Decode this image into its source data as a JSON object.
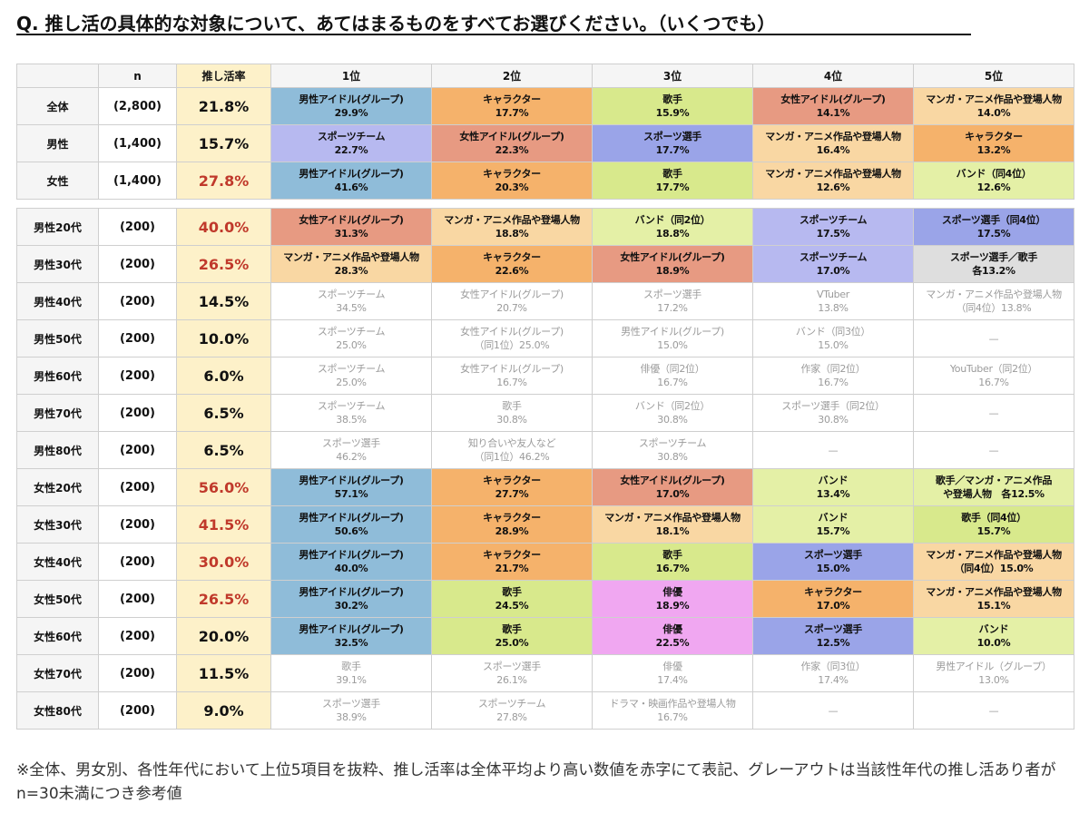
{
  "title": "Q. 推し活の具体的な対象について、あてはまるものをすべてお選びください。（いくつでも）",
  "header": {
    "blank": "",
    "n": "n",
    "rate": "推し活率",
    "ranks": [
      "1位",
      "2位",
      "3位",
      "4位",
      "5位"
    ]
  },
  "colors": {
    "blue": "#8fbcd9",
    "orange": "#f5b26b",
    "lime": "#d8e98c",
    "red": "#e79a82",
    "peach": "#f9d7a3",
    "purple": "#b7b9f0",
    "violet": "#9aa4e8",
    "pink": "#f0a7f1",
    "gray": "#dedede",
    "lgreen": "#e4f0a6",
    "highlight_text": "#c0392b",
    "gray_text": "#9b9b9b"
  },
  "group1": [
    {
      "label": "全体",
      "n": "(2,800)",
      "rate": "21.8%",
      "red": false,
      "cells": [
        {
          "l1": "男性アイドル(グループ)",
          "l2": "29.9%",
          "color": "blue",
          "gray": false
        },
        {
          "l1": "キャラクター",
          "l2": "17.7%",
          "color": "orange",
          "gray": false
        },
        {
          "l1": "歌手",
          "l2": "15.9%",
          "color": "lime",
          "gray": false
        },
        {
          "l1": "女性アイドル(グループ)",
          "l2": "14.1%",
          "color": "red",
          "gray": false
        },
        {
          "l1": "マンガ・アニメ作品や登場人物",
          "l2": "14.0%",
          "color": "peach",
          "gray": false
        }
      ]
    },
    {
      "label": "男性",
      "n": "(1,400)",
      "rate": "15.7%",
      "red": false,
      "cells": [
        {
          "l1": "スポーツチーム",
          "l2": "22.7%",
          "color": "purple",
          "gray": false
        },
        {
          "l1": "女性アイドル(グループ)",
          "l2": "22.3%",
          "color": "red",
          "gray": false
        },
        {
          "l1": "スポーツ選手",
          "l2": "17.7%",
          "color": "violet",
          "gray": false
        },
        {
          "l1": "マンガ・アニメ作品や登場人物",
          "l2": "16.4%",
          "color": "peach",
          "gray": false
        },
        {
          "l1": "キャラクター",
          "l2": "13.2%",
          "color": "orange",
          "gray": false
        }
      ]
    },
    {
      "label": "女性",
      "n": "(1,400)",
      "rate": "27.8%",
      "red": true,
      "cells": [
        {
          "l1": "男性アイドル(グループ)",
          "l2": "41.6%",
          "color": "blue",
          "gray": false
        },
        {
          "l1": "キャラクター",
          "l2": "20.3%",
          "color": "orange",
          "gray": false
        },
        {
          "l1": "歌手",
          "l2": "17.7%",
          "color": "lime",
          "gray": false
        },
        {
          "l1": "マンガ・アニメ作品や登場人物",
          "l2": "12.6%",
          "color": "peach",
          "gray": false
        },
        {
          "l1": "バンド（同4位）",
          "l2": "12.6%",
          "color": "lgreen",
          "gray": false
        }
      ]
    }
  ],
  "group2": [
    {
      "label": "男性20代",
      "n": "(200)",
      "rate": "40.0%",
      "red": true,
      "cells": [
        {
          "l1": "女性アイドル(グループ)",
          "l2": "31.3%",
          "color": "red",
          "gray": false
        },
        {
          "l1": "マンガ・アニメ作品や登場人物",
          "l2": "18.8%",
          "color": "peach",
          "gray": false
        },
        {
          "l1": "バンド（同2位）",
          "l2": "18.8%",
          "color": "lgreen",
          "gray": false
        },
        {
          "l1": "スポーツチーム",
          "l2": "17.5%",
          "color": "purple",
          "gray": false
        },
        {
          "l1": "スポーツ選手（同4位）",
          "l2": "17.5%",
          "color": "violet",
          "gray": false
        }
      ]
    },
    {
      "label": "男性30代",
      "n": "(200)",
      "rate": "26.5%",
      "red": true,
      "cells": [
        {
          "l1": "マンガ・アニメ作品や登場人物",
          "l2": "28.3%",
          "color": "peach",
          "gray": false
        },
        {
          "l1": "キャラクター",
          "l2": "22.6%",
          "color": "orange",
          "gray": false
        },
        {
          "l1": "女性アイドル(グループ)",
          "l2": "18.9%",
          "color": "red",
          "gray": false
        },
        {
          "l1": "スポーツチーム",
          "l2": "17.0%",
          "color": "purple",
          "gray": false
        },
        {
          "l1": "スポーツ選手／歌手",
          "l2": "各13.2%",
          "color": "gray",
          "gray": false
        }
      ]
    },
    {
      "label": "男性40代",
      "n": "(200)",
      "rate": "14.5%",
      "red": false,
      "cells": [
        {
          "l1": "スポーツチーム",
          "l2": "34.5%",
          "color": "none",
          "gray": true
        },
        {
          "l1": "女性アイドル(グループ)",
          "l2": "20.7%",
          "color": "none",
          "gray": true
        },
        {
          "l1": "スポーツ選手",
          "l2": "17.2%",
          "color": "none",
          "gray": true
        },
        {
          "l1": "VTuber",
          "l2": "13.8%",
          "color": "none",
          "gray": true
        },
        {
          "l1": "マンガ・アニメ作品や登場人物",
          "l2": "（同4位）13.8%",
          "color": "none",
          "gray": true
        }
      ]
    },
    {
      "label": "男性50代",
      "n": "(200)",
      "rate": "10.0%",
      "red": false,
      "cells": [
        {
          "l1": "スポーツチーム",
          "l2": "25.0%",
          "color": "none",
          "gray": true
        },
        {
          "l1": "女性アイドル(グループ)",
          "l2": "（同1位）25.0%",
          "color": "none",
          "gray": true
        },
        {
          "l1": "男性アイドル(グループ)",
          "l2": "15.0%",
          "color": "none",
          "gray": true
        },
        {
          "l1": "バンド（同3位）",
          "l2": "15.0%",
          "color": "none",
          "gray": true
        },
        {
          "l1": "—",
          "l2": "",
          "color": "none",
          "gray": true
        }
      ]
    },
    {
      "label": "男性60代",
      "n": "(200)",
      "rate": "6.0%",
      "red": false,
      "cells": [
        {
          "l1": "スポーツチーム",
          "l2": "25.0%",
          "color": "none",
          "gray": true
        },
        {
          "l1": "女性アイドル(グループ)",
          "l2": "16.7%",
          "color": "none",
          "gray": true
        },
        {
          "l1": "俳優（同2位）",
          "l2": "16.7%",
          "color": "none",
          "gray": true
        },
        {
          "l1": "作家（同2位）",
          "l2": "16.7%",
          "color": "none",
          "gray": true
        },
        {
          "l1": "YouTuber（同2位）",
          "l2": "16.7%",
          "color": "none",
          "gray": true
        }
      ]
    },
    {
      "label": "男性70代",
      "n": "(200)",
      "rate": "6.5%",
      "red": false,
      "cells": [
        {
          "l1": "スポーツチーム",
          "l2": "38.5%",
          "color": "none",
          "gray": true
        },
        {
          "l1": "歌手",
          "l2": "30.8%",
          "color": "none",
          "gray": true
        },
        {
          "l1": "バンド（同2位）",
          "l2": "30.8%",
          "color": "none",
          "gray": true
        },
        {
          "l1": "スポーツ選手（同2位）",
          "l2": "30.8%",
          "color": "none",
          "gray": true
        },
        {
          "l1": "—",
          "l2": "",
          "color": "none",
          "gray": true
        }
      ]
    },
    {
      "label": "男性80代",
      "n": "(200)",
      "rate": "6.5%",
      "red": false,
      "cells": [
        {
          "l1": "スポーツ選手",
          "l2": "46.2%",
          "color": "none",
          "gray": true
        },
        {
          "l1": "知り合いや友人など",
          "l2": "（同1位）46.2%",
          "color": "none",
          "gray": true
        },
        {
          "l1": "スポーツチーム",
          "l2": "30.8%",
          "color": "none",
          "gray": true
        },
        {
          "l1": "—",
          "l2": "",
          "color": "none",
          "gray": true
        },
        {
          "l1": "—",
          "l2": "",
          "color": "none",
          "gray": true
        }
      ]
    },
    {
      "label": "女性20代",
      "n": "(200)",
      "rate": "56.0%",
      "red": true,
      "cells": [
        {
          "l1": "男性アイドル(グループ)",
          "l2": "57.1%",
          "color": "blue",
          "gray": false
        },
        {
          "l1": "キャラクター",
          "l2": "27.7%",
          "color": "orange",
          "gray": false
        },
        {
          "l1": "女性アイドル(グループ)",
          "l2": "17.0%",
          "color": "red",
          "gray": false
        },
        {
          "l1": "バンド",
          "l2": "13.4%",
          "color": "lgreen",
          "gray": false
        },
        {
          "l1": "歌手／マンガ・アニメ作品",
          "l2": "や登場人物　各12.5%",
          "color": "lgreen",
          "gray": false
        }
      ]
    },
    {
      "label": "女性30代",
      "n": "(200)",
      "rate": "41.5%",
      "red": true,
      "cells": [
        {
          "l1": "男性アイドル(グループ)",
          "l2": "50.6%",
          "color": "blue",
          "gray": false
        },
        {
          "l1": "キャラクター",
          "l2": "28.9%",
          "color": "orange",
          "gray": false
        },
        {
          "l1": "マンガ・アニメ作品や登場人物",
          "l2": "18.1%",
          "color": "peach",
          "gray": false
        },
        {
          "l1": "バンド",
          "l2": "15.7%",
          "color": "lgreen",
          "gray": false
        },
        {
          "l1": "歌手（同4位）",
          "l2": "15.7%",
          "color": "lime",
          "gray": false
        }
      ]
    },
    {
      "label": "女性40代",
      "n": "(200)",
      "rate": "30.0%",
      "red": true,
      "cells": [
        {
          "l1": "男性アイドル(グループ)",
          "l2": "40.0%",
          "color": "blue",
          "gray": false
        },
        {
          "l1": "キャラクター",
          "l2": "21.7%",
          "color": "orange",
          "gray": false
        },
        {
          "l1": "歌手",
          "l2": "16.7%",
          "color": "lime",
          "gray": false
        },
        {
          "l1": "スポーツ選手",
          "l2": "15.0%",
          "color": "violet",
          "gray": false
        },
        {
          "l1": "マンガ・アニメ作品や登場人物",
          "l2": "（同4位）15.0%",
          "color": "peach",
          "gray": false
        }
      ]
    },
    {
      "label": "女性50代",
      "n": "(200)",
      "rate": "26.5%",
      "red": true,
      "cells": [
        {
          "l1": "男性アイドル(グループ)",
          "l2": "30.2%",
          "color": "blue",
          "gray": false
        },
        {
          "l1": "歌手",
          "l2": "24.5%",
          "color": "lime",
          "gray": false
        },
        {
          "l1": "俳優",
          "l2": "18.9%",
          "color": "pink",
          "gray": false
        },
        {
          "l1": "キャラクター",
          "l2": "17.0%",
          "color": "orange",
          "gray": false
        },
        {
          "l1": "マンガ・アニメ作品や登場人物",
          "l2": "15.1%",
          "color": "peach",
          "gray": false
        }
      ]
    },
    {
      "label": "女性60代",
      "n": "(200)",
      "rate": "20.0%",
      "red": false,
      "cells": [
        {
          "l1": "男性アイドル(グループ)",
          "l2": "32.5%",
          "color": "blue",
          "gray": false
        },
        {
          "l1": "歌手",
          "l2": "25.0%",
          "color": "lime",
          "gray": false
        },
        {
          "l1": "俳優",
          "l2": "22.5%",
          "color": "pink",
          "gray": false
        },
        {
          "l1": "スポーツ選手",
          "l2": "12.5%",
          "color": "violet",
          "gray": false
        },
        {
          "l1": "バンド",
          "l2": "10.0%",
          "color": "lgreen",
          "gray": false
        }
      ]
    },
    {
      "label": "女性70代",
      "n": "(200)",
      "rate": "11.5%",
      "red": false,
      "cells": [
        {
          "l1": "歌手",
          "l2": "39.1%",
          "color": "none",
          "gray": true
        },
        {
          "l1": "スポーツ選手",
          "l2": "26.1%",
          "color": "none",
          "gray": true
        },
        {
          "l1": "俳優",
          "l2": "17.4%",
          "color": "none",
          "gray": true
        },
        {
          "l1": "作家（同3位）",
          "l2": "17.4%",
          "color": "none",
          "gray": true
        },
        {
          "l1": "男性アイドル（グループ）",
          "l2": "13.0%",
          "color": "none",
          "gray": true
        }
      ]
    },
    {
      "label": "女性80代",
      "n": "(200)",
      "rate": "9.0%",
      "red": false,
      "cells": [
        {
          "l1": "スポーツ選手",
          "l2": "38.9%",
          "color": "none",
          "gray": true
        },
        {
          "l1": "スポーツチーム",
          "l2": "27.8%",
          "color": "none",
          "gray": true
        },
        {
          "l1": "ドラマ・映画作品や登場人物",
          "l2": "16.7%",
          "color": "none",
          "gray": true
        },
        {
          "l1": "—",
          "l2": "",
          "color": "none",
          "gray": true
        },
        {
          "l1": "—",
          "l2": "",
          "color": "none",
          "gray": true
        }
      ]
    }
  ],
  "note": "※全体、男女別、各性年代において上位5項目を抜粋、推し活率は全体平均より高い数値を赤字にて表記、グレーアウトは当該性年代の推し活あり者がn=30未満につき参考値"
}
